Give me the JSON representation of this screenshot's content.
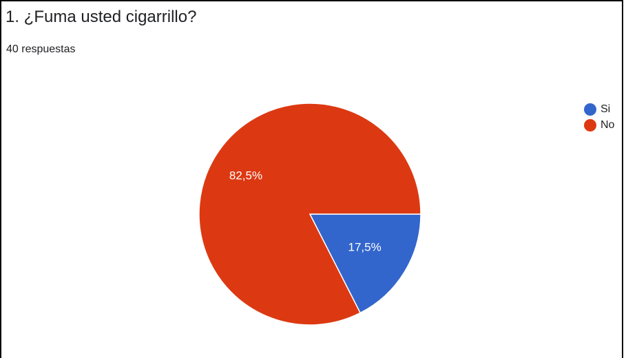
{
  "question": {
    "title": "1. ¿Fuma usted cigarrillo?",
    "responses": "40 respuestas"
  },
  "chart_data": {
    "type": "pie",
    "categories": [
      "Si",
      "No"
    ],
    "values": [
      17.5,
      82.5
    ],
    "labels": [
      "17,5%",
      "82,5%"
    ],
    "colors": [
      "#3366cc",
      "#dc3912"
    ],
    "legend_position": "right"
  }
}
